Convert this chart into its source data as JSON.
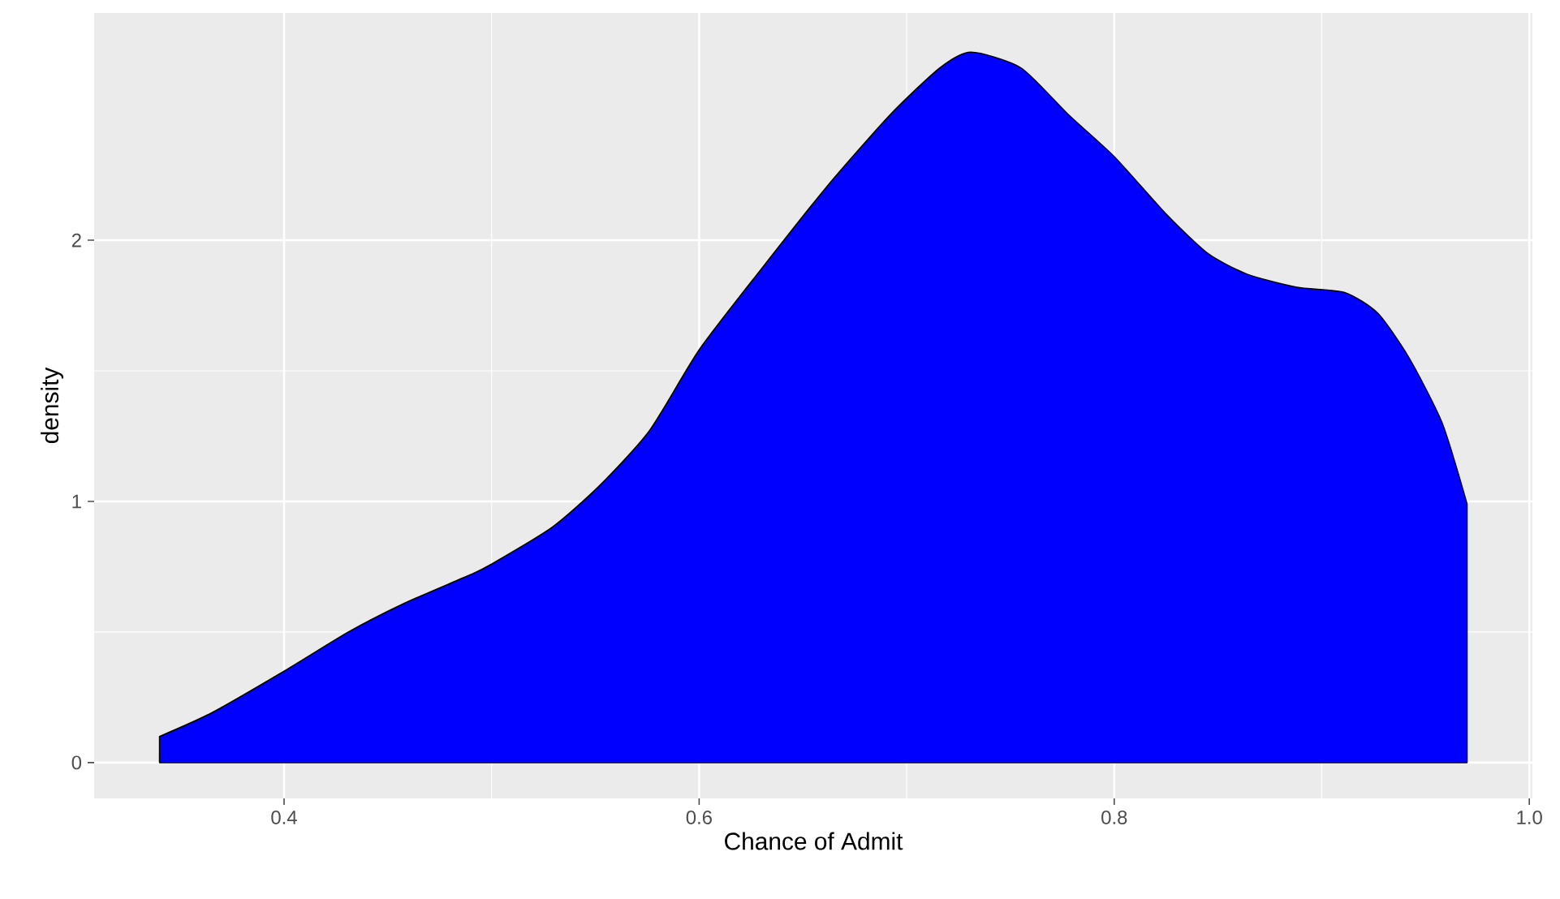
{
  "chart_data": {
    "type": "area",
    "xlabel": "Chance of Admit",
    "ylabel": "density",
    "x": [
      0.34,
      0.365,
      0.4,
      0.431,
      0.458,
      0.49,
      0.5,
      0.529,
      0.552,
      0.576,
      0.6,
      0.63,
      0.661,
      0.692,
      0.716,
      0.731,
      0.755,
      0.778,
      0.8,
      0.825,
      0.845,
      0.864,
      0.888,
      0.911,
      0.927,
      0.942,
      0.958,
      0.97
    ],
    "series": [
      {
        "color": "#0000ff",
        "values": [
          0.1,
          0.19,
          0.35,
          0.5,
          0.61,
          0.72,
          0.76,
          0.9,
          1.06,
          1.27,
          1.58,
          1.89,
          2.2,
          2.48,
          2.66,
          2.72,
          2.66,
          2.48,
          2.32,
          2.1,
          1.95,
          1.87,
          1.82,
          1.8,
          1.72,
          1.55,
          1.3,
          0.99
        ]
      }
    ],
    "xlim": [
      0.3085,
      1.0015
    ],
    "ylim": [
      -0.137,
      2.87
    ],
    "xticks": [
      0.4,
      0.6,
      0.8,
      {
        "value": 1,
        "label": "1.0"
      }
    ],
    "yticks": [
      0,
      1,
      2
    ],
    "grid": true,
    "marker": "none"
  }
}
